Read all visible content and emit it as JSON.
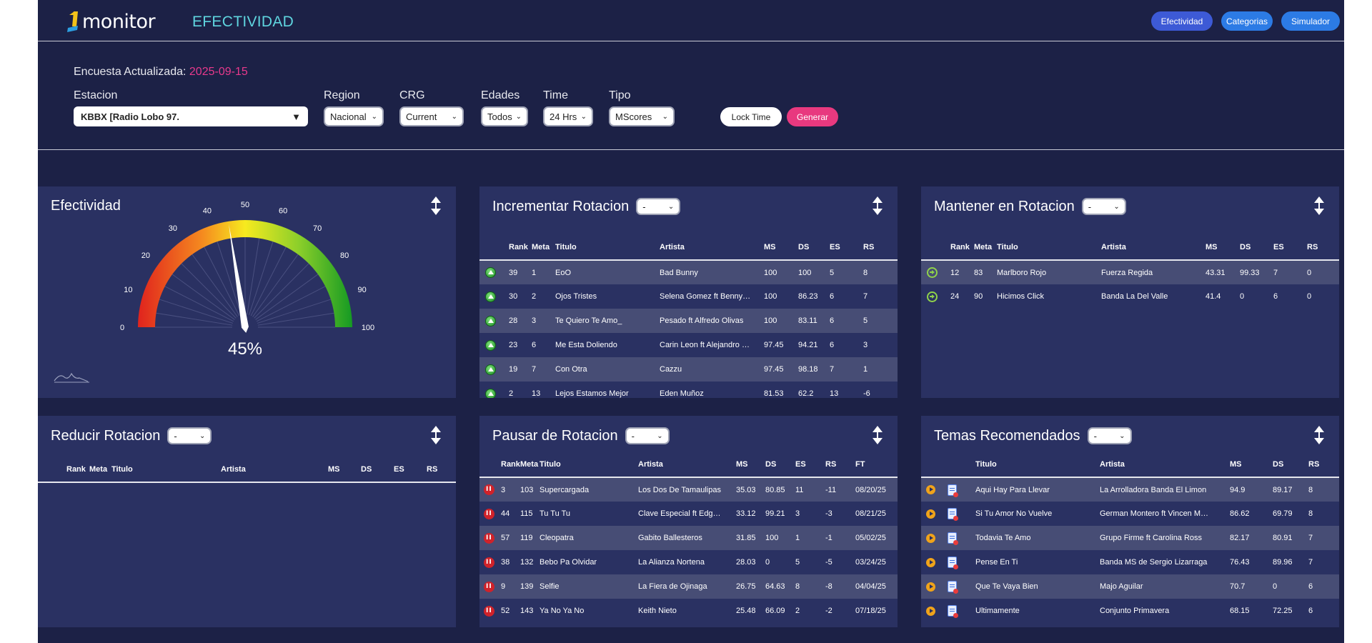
{
  "header": {
    "logo_text": "monitor",
    "page_title": "EFECTIVIDAD",
    "nav": [
      "Efectividad",
      "Categorias",
      "Simulador"
    ]
  },
  "filters": {
    "survey_label": "Encuesta Actualizada:",
    "survey_date": "2025-09-15",
    "estacion": {
      "label": "Estacion",
      "value": "KBBX [Radio Lobo 97."
    },
    "region": {
      "label": "Region",
      "value": "Nacional"
    },
    "crg": {
      "label": "CRG",
      "value": "Current"
    },
    "edades": {
      "label": "Edades",
      "value": "Todos"
    },
    "time": {
      "label": "Time",
      "value": "24 Hrs"
    },
    "tipo": {
      "label": "Tipo",
      "value": "MScores"
    },
    "lock_label": "Lock Time",
    "generate_label": "Generar"
  },
  "efectividad": {
    "title": "Efectividad",
    "value_label": "45%",
    "value": 45,
    "ticks": [
      "0",
      "10",
      "20",
      "30",
      "40",
      "50",
      "60",
      "70",
      "80",
      "90",
      "100"
    ]
  },
  "incrementar": {
    "title": "Incrementar Rotacion",
    "select": "-",
    "headers": [
      "Rank",
      "Meta",
      "Titulo",
      "Artista",
      "MS",
      "DS",
      "ES",
      "RS"
    ],
    "rows": [
      [
        "39",
        "1",
        "EoO",
        "Bad Bunny",
        "100",
        "100",
        "5",
        "8"
      ],
      [
        "30",
        "2",
        "Ojos Tristes",
        "Selena Gomez ft Benny…",
        "100",
        "86.23",
        "6",
        "7"
      ],
      [
        "28",
        "3",
        "Te Quiero Te Amo_",
        "Pesado ft Alfredo Olivas",
        "100",
        "83.11",
        "6",
        "5"
      ],
      [
        "23",
        "6",
        "Me Esta Doliendo",
        "Carin Leon ft Alejandro …",
        "97.45",
        "94.21",
        "6",
        "3"
      ],
      [
        "19",
        "7",
        "Con Otra",
        "Cazzu",
        "97.45",
        "98.18",
        "7",
        "1"
      ],
      [
        "2",
        "13",
        "Lejos Estamos Mejor",
        "Eden Muñoz",
        "81.53",
        "62.2",
        "13",
        "-6"
      ]
    ]
  },
  "mantener": {
    "title": "Mantener en Rotacion",
    "select": "-",
    "headers": [
      "Rank",
      "Meta",
      "Titulo",
      "Artista",
      "MS",
      "DS",
      "ES",
      "RS"
    ],
    "rows": [
      [
        "12",
        "83",
        "Marlboro Rojo",
        "Fuerza Regida",
        "43.31",
        "99.33",
        "7",
        "0"
      ],
      [
        "24",
        "90",
        "Hicimos Click",
        "Banda La Del Valle",
        "41.4",
        "0",
        "6",
        "0"
      ]
    ]
  },
  "reducir": {
    "title": "Reducir Rotacion",
    "select": "-",
    "headers": [
      "Rank",
      "Meta",
      "Titulo",
      "Artista",
      "MS",
      "DS",
      "ES",
      "RS"
    ]
  },
  "pausar": {
    "title": "Pausar de Rotacion",
    "select": "-",
    "headers": [
      "Rank",
      "Meta",
      "Titulo",
      "Artista",
      "MS",
      "DS",
      "ES",
      "RS",
      "FT"
    ],
    "rows": [
      [
        "3",
        "103",
        "Supercargada",
        "Los Dos De Tamaulipas",
        "35.03",
        "80.85",
        "11",
        "-11",
        "08/20/25"
      ],
      [
        "44",
        "115",
        "Tu Tu Tu",
        "Clave Especial ft Edg…",
        "33.12",
        "99.21",
        "3",
        "-3",
        "08/21/25"
      ],
      [
        "57",
        "119",
        "Cleopatra",
        "Gabito Ballesteros",
        "31.85",
        "100",
        "1",
        "-1",
        "05/02/25"
      ],
      [
        "38",
        "132",
        "Bebo Pa Olvidar",
        "La Alianza Nortena",
        "28.03",
        "0",
        "5",
        "-5",
        "03/24/25"
      ],
      [
        "9",
        "139",
        "Selfie",
        "La Fiera de Ojinaga",
        "26.75",
        "64.63",
        "8",
        "-8",
        "04/04/25"
      ],
      [
        "52",
        "143",
        "Ya No Ya No",
        "Keith Nieto",
        "25.48",
        "66.09",
        "2",
        "-2",
        "07/18/25"
      ]
    ]
  },
  "recomendados": {
    "title": "Temas Recomendados",
    "select": "-",
    "headers": [
      "Titulo",
      "Artista",
      "MS",
      "DS",
      "RS"
    ],
    "rows": [
      [
        "Aqui Hay Para Llevar",
        "La Arrolladora Banda El Limon",
        "94.9",
        "89.17",
        "8"
      ],
      [
        "Si Tu Amor No Vuelve",
        "German Montero ft Vincen M…",
        "86.62",
        "69.79",
        "8"
      ],
      [
        "Todavia Te Amo",
        "Grupo Firme ft Carolina Ross",
        "82.17",
        "80.91",
        "7"
      ],
      [
        "Pense En Ti",
        "Banda MS de Sergio Lizarraga",
        "76.43",
        "89.96",
        "7"
      ],
      [
        "Que Te Vaya Bien",
        "Majo Aguilar",
        "70.7",
        "0",
        "6"
      ],
      [
        "Ultimamente",
        "Conjunto Primavera",
        "68.15",
        "72.25",
        "6"
      ]
    ]
  },
  "colors": {
    "background": "#1c2146",
    "panel": "#2a3162",
    "row_alt": "#474d75",
    "accent_pink": "#e8398c",
    "accent_cyan": "#5fd5df",
    "nav_blue": "#2c7be5"
  }
}
